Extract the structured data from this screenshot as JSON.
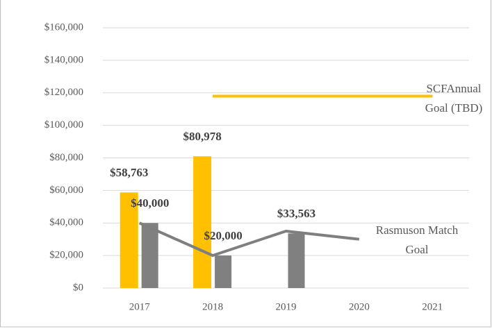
{
  "chart_data": {
    "type": "bar",
    "categories": [
      "2017",
      "2018",
      "2019",
      "2020",
      "2021"
    ],
    "series": [
      {
        "color": "#ffc000",
        "values": [
          58763,
          80978,
          null,
          null,
          null
        ],
        "value_labels": [
          "$58,763",
          "$80,978",
          null,
          null,
          null
        ]
      },
      {
        "color": "#808080",
        "values": [
          40000,
          20000,
          33563,
          null,
          null
        ],
        "value_labels": [
          "$40,000",
          "$20,000",
          "$33,563",
          null,
          null
        ]
      },
      {
        "name": "Rasmuson Match Goal",
        "type": "line",
        "color": "#7f7f7f",
        "values": [
          40000,
          20000,
          35000,
          30000,
          null
        ]
      },
      {
        "name": "SCFAnnual Goal (TBD)",
        "type": "line",
        "color": "#ffc000",
        "values": [
          null,
          118000,
          118000,
          118000,
          118000
        ]
      }
    ],
    "ylim": [
      0,
      160000
    ],
    "yticks": [
      {
        "value": 0,
        "label": "$0"
      },
      {
        "value": 20000,
        "label": "$20,000"
      },
      {
        "value": 40000,
        "label": "$40,000"
      },
      {
        "value": 60000,
        "label": "$60,000"
      },
      {
        "value": 80000,
        "label": "$80,000"
      },
      {
        "value": 100000,
        "label": "$100,000"
      },
      {
        "value": 120000,
        "label": "$120,000"
      },
      {
        "value": 140000,
        "label": "$140,000"
      },
      {
        "value": 160000,
        "label": "$160,000"
      }
    ],
    "grid": true
  }
}
